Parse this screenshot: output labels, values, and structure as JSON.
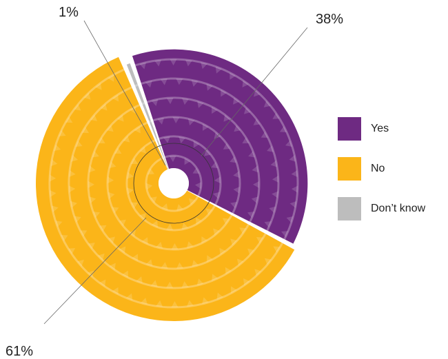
{
  "chart_data": {
    "type": "pie",
    "slices": [
      {
        "label": "Yes",
        "value": 38,
        "display": "38%",
        "color": "#6E2A82"
      },
      {
        "label": "No",
        "value": 61,
        "display": "61%",
        "color": "#FBB519"
      },
      {
        "label": "Don’t know",
        "value": 1,
        "display": "1%",
        "color": "#BDBDBD"
      }
    ],
    "legend_position": "right"
  }
}
